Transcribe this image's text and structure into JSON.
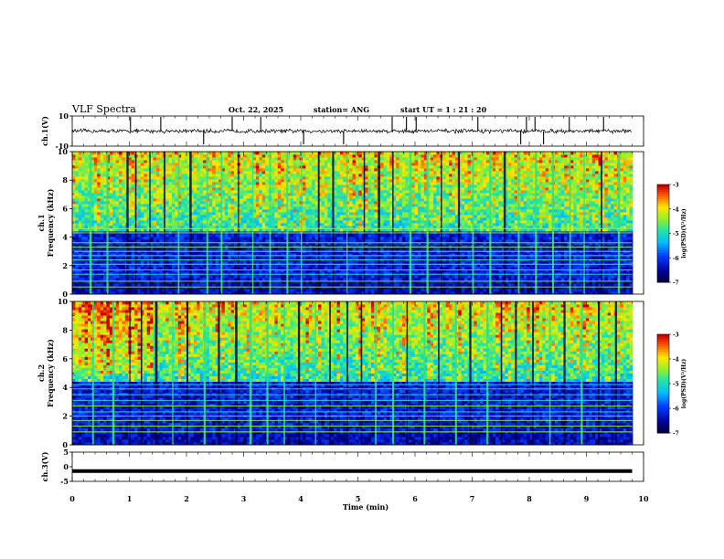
{
  "header": {
    "title": "VLF Spectra",
    "date": "Oct. 22, 2025",
    "station": "station= ANG",
    "start_ut": "start  UT =   1 : 21 : 20"
  },
  "chart_data": [
    {
      "type": "line",
      "name": "ch.1 waveform",
      "ylabel": "ch.1(V)",
      "ylim": [
        -10,
        10
      ],
      "y_ticks": [
        "10",
        "-10"
      ],
      "xlim": [
        0,
        10
      ],
      "data_end": 9.8,
      "baseline": 0,
      "noise_amplitude": 1.2,
      "spike_times": [
        1.02,
        1.55,
        2.3,
        2.8,
        3.3,
        4.05,
        4.75,
        5.6,
        5.85,
        6.02,
        7.1,
        7.85,
        7.95,
        8.1,
        8.25,
        8.7,
        9.3
      ]
    },
    {
      "type": "heatmap",
      "name": "ch.1 spectrogram",
      "ylabel": "ch.1",
      "ylabel2": "Frequency (kHz)",
      "xlim": [
        0,
        10
      ],
      "data_end": 9.8,
      "ylim": [
        0,
        10
      ],
      "y_ticks": [
        "0",
        "2",
        "4",
        "6",
        "8",
        "10"
      ],
      "colorbar": {
        "label": "log(PSD)(V²/Hz)",
        "range": [
          -7,
          -3
        ],
        "ticks": [
          "-3",
          "-4",
          "-5",
          "-6",
          "-7"
        ]
      },
      "hum_lines_khz": [
        0.5,
        0.9,
        1.4,
        1.7,
        2.1,
        2.4,
        2.7,
        3.0,
        3.3,
        3.6,
        4.3,
        4.6
      ],
      "sferic_times": [
        0.3,
        0.6,
        0.95,
        1.1,
        1.35,
        1.6,
        1.85,
        2.05,
        2.35,
        2.6,
        2.9,
        3.15,
        3.45,
        3.75,
        4.0,
        4.3,
        4.55,
        4.8,
        5.1,
        5.35,
        5.6,
        5.9,
        6.2,
        6.45,
        6.75,
        7.0,
        7.3,
        7.55,
        7.8,
        8.1,
        8.4,
        8.7,
        8.95,
        9.25,
        9.55
      ]
    },
    {
      "type": "heatmap",
      "name": "ch.2 spectrogram",
      "ylabel": "ch.2",
      "ylabel2": "Frequency (kHz)",
      "xlim": [
        0,
        10
      ],
      "data_end": 9.8,
      "ylim": [
        0,
        10
      ],
      "y_ticks": [
        "0",
        "2",
        "4",
        "6",
        "8",
        "10"
      ],
      "colorbar": {
        "label": "log(PSD)(V²/Hz)",
        "range": [
          -7,
          -3
        ],
        "ticks": [
          "-3",
          "-4",
          "-5",
          "-6",
          "-7"
        ]
      },
      "hum_lines_khz": [
        0.9,
        1.3,
        1.7,
        2.0,
        2.3,
        2.7,
        3.1,
        3.5,
        3.9,
        4.2
      ],
      "sferic_times": [
        0.35,
        0.7,
        1.0,
        1.2,
        1.45,
        1.75,
        2.0,
        2.3,
        2.55,
        2.85,
        3.1,
        3.4,
        3.7,
        3.95,
        4.25,
        4.5,
        4.8,
        5.05,
        5.3,
        5.6,
        5.85,
        6.15,
        6.4,
        6.7,
        6.95,
        7.25,
        7.5,
        7.75,
        8.05,
        8.35,
        8.6,
        8.9,
        9.2,
        9.5
      ]
    },
    {
      "type": "line",
      "name": "ch.3 waveform",
      "ylabel": "ch.3(V)",
      "ylim": [
        -5,
        5
      ],
      "y_ticks": [
        "5",
        "0",
        "-5"
      ],
      "xlim": [
        0,
        10
      ],
      "data_end": 9.8,
      "baseline": -1.5,
      "xlabel": "Time (min)",
      "x_ticks": [
        "0",
        "1",
        "2",
        "3",
        "4",
        "5",
        "6",
        "7",
        "8",
        "9",
        "10"
      ]
    }
  ]
}
